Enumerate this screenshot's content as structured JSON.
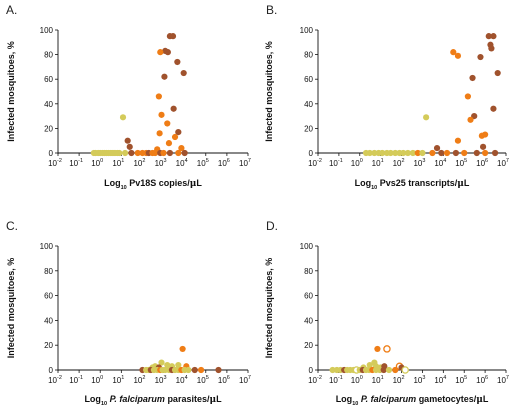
{
  "colors": {
    "brown": "#a0522d",
    "orange": "#ef7d16",
    "yellow": "#d4cb5a",
    "axis": "#111111"
  },
  "chart_data": [
    {
      "panel": "A.",
      "type": "scatter",
      "xlabel_parts": [
        "Log",
        "10",
        " Pv18S copies/",
        "μ",
        "L"
      ],
      "ylabel": "Infected mosquitoes, %",
      "xscale": "log",
      "xlim": [
        0.01,
        10000000
      ],
      "ylim": [
        0,
        100
      ],
      "yticks": [
        0,
        20,
        40,
        60,
        80,
        100
      ],
      "xticks_exp": [
        "-2",
        "-1",
        "0",
        "1",
        "2",
        "3",
        "4",
        "5",
        "6",
        "7"
      ],
      "grid": false,
      "points": [
        {
          "x": 2000,
          "y": 95,
          "c": "brown"
        },
        {
          "x": 2800,
          "y": 95,
          "c": "brown"
        },
        {
          "x": 1200,
          "y": 83,
          "c": "brown"
        },
        {
          "x": 1600,
          "y": 82,
          "c": "brown"
        },
        {
          "x": 700,
          "y": 82,
          "c": "orange"
        },
        {
          "x": 4500,
          "y": 74,
          "c": "brown"
        },
        {
          "x": 9000,
          "y": 65,
          "c": "brown"
        },
        {
          "x": 1100,
          "y": 62,
          "c": "brown"
        },
        {
          "x": 600,
          "y": 46,
          "c": "orange"
        },
        {
          "x": 3000,
          "y": 36,
          "c": "brown"
        },
        {
          "x": 800,
          "y": 31,
          "c": "orange"
        },
        {
          "x": 12,
          "y": 29,
          "c": "yellow"
        },
        {
          "x": 1500,
          "y": 24,
          "c": "orange"
        },
        {
          "x": 5000,
          "y": 17,
          "c": "brown"
        },
        {
          "x": 650,
          "y": 16,
          "c": "orange"
        },
        {
          "x": 3500,
          "y": 13,
          "c": "orange"
        },
        {
          "x": 20,
          "y": 10,
          "c": "brown"
        },
        {
          "x": 1800,
          "y": 8,
          "c": "orange"
        },
        {
          "x": 25,
          "y": 5,
          "c": "brown"
        },
        {
          "x": 500,
          "y": 3,
          "c": "orange"
        },
        {
          "x": 7000,
          "y": 4,
          "c": "orange"
        },
        {
          "x": 0.5,
          "y": 0,
          "c": "yellow"
        },
        {
          "x": 0.6,
          "y": 0,
          "c": "yellow"
        },
        {
          "x": 0.8,
          "y": 0,
          "c": "yellow"
        },
        {
          "x": 1.0,
          "y": 0,
          "c": "yellow"
        },
        {
          "x": 1.3,
          "y": 0,
          "c": "yellow"
        },
        {
          "x": 1.6,
          "y": 0,
          "c": "yellow"
        },
        {
          "x": 2.0,
          "y": 0,
          "c": "yellow"
        },
        {
          "x": 2.5,
          "y": 0,
          "c": "yellow"
        },
        {
          "x": 3.2,
          "y": 0,
          "c": "yellow"
        },
        {
          "x": 4.0,
          "y": 0,
          "c": "yellow"
        },
        {
          "x": 5.0,
          "y": 0,
          "c": "yellow"
        },
        {
          "x": 6.5,
          "y": 0,
          "c": "yellow"
        },
        {
          "x": 8.0,
          "y": 0,
          "c": "yellow"
        },
        {
          "x": 15,
          "y": 0,
          "c": "yellow"
        },
        {
          "x": 30,
          "y": 0,
          "c": "brown"
        },
        {
          "x": 60,
          "y": 0,
          "c": "orange"
        },
        {
          "x": 100,
          "y": 0,
          "c": "orange"
        },
        {
          "x": 150,
          "y": 0,
          "c": "orange"
        },
        {
          "x": 200,
          "y": 0,
          "c": "brown"
        },
        {
          "x": 300,
          "y": 0,
          "c": "orange"
        },
        {
          "x": 400,
          "y": 0,
          "c": "orange"
        },
        {
          "x": 700,
          "y": 0,
          "c": "brown"
        },
        {
          "x": 1000,
          "y": 0,
          "c": "orange"
        },
        {
          "x": 2000,
          "y": 0,
          "c": "brown"
        },
        {
          "x": 5000,
          "y": 0,
          "c": "orange"
        },
        {
          "x": 10000,
          "y": 0,
          "c": "brown"
        }
      ]
    },
    {
      "panel": "B.",
      "type": "scatter",
      "xlabel_parts": [
        "Log",
        "10",
        " Pvs25 transcripts/",
        "μ",
        "L"
      ],
      "ylabel": "Infected mosquitoes, %",
      "xscale": "log",
      "xlim": [
        0.01,
        10000000
      ],
      "ylim": [
        0,
        100
      ],
      "yticks": [
        0,
        20,
        40,
        60,
        80,
        100
      ],
      "xticks_exp": [
        "-2",
        "-1",
        "0",
        "1",
        "2",
        "3",
        "4",
        "5",
        "6",
        "7"
      ],
      "grid": false,
      "points": [
        {
          "x": 1500000,
          "y": 95,
          "c": "brown"
        },
        {
          "x": 2500000,
          "y": 95,
          "c": "brown"
        },
        {
          "x": 1800000,
          "y": 88,
          "c": "brown"
        },
        {
          "x": 2000000,
          "y": 85,
          "c": "brown"
        },
        {
          "x": 30000,
          "y": 82,
          "c": "orange"
        },
        {
          "x": 50000,
          "y": 79,
          "c": "orange"
        },
        {
          "x": 600000,
          "y": 78,
          "c": "brown"
        },
        {
          "x": 4000000,
          "y": 65,
          "c": "brown"
        },
        {
          "x": 250000,
          "y": 61,
          "c": "brown"
        },
        {
          "x": 150000,
          "y": 46,
          "c": "orange"
        },
        {
          "x": 2500000,
          "y": 36,
          "c": "brown"
        },
        {
          "x": 300000,
          "y": 30,
          "c": "brown"
        },
        {
          "x": 1500,
          "y": 29,
          "c": "yellow"
        },
        {
          "x": 200000,
          "y": 27,
          "c": "orange"
        },
        {
          "x": 1000000,
          "y": 15,
          "c": "orange"
        },
        {
          "x": 50000,
          "y": 10,
          "c": "orange"
        },
        {
          "x": 700000,
          "y": 14,
          "c": "orange"
        },
        {
          "x": 800000,
          "y": 5,
          "c": "brown"
        },
        {
          "x": 5000,
          "y": 4,
          "c": "brown"
        },
        {
          "x": 2,
          "y": 0,
          "c": "yellow"
        },
        {
          "x": 3,
          "y": 0,
          "c": "yellow"
        },
        {
          "x": 5,
          "y": 0,
          "c": "yellow"
        },
        {
          "x": 8,
          "y": 0,
          "c": "yellow"
        },
        {
          "x": 12,
          "y": 0,
          "c": "yellow"
        },
        {
          "x": 20,
          "y": 0,
          "c": "yellow"
        },
        {
          "x": 30,
          "y": 0,
          "c": "yellow"
        },
        {
          "x": 50,
          "y": 0,
          "c": "yellow"
        },
        {
          "x": 80,
          "y": 0,
          "c": "yellow"
        },
        {
          "x": 120,
          "y": 0,
          "c": "yellow"
        },
        {
          "x": 200,
          "y": 0,
          "c": "yellow"
        },
        {
          "x": 350,
          "y": 0,
          "c": "yellow"
        },
        {
          "x": 600,
          "y": 0,
          "c": "orange"
        },
        {
          "x": 1000,
          "y": 0,
          "c": "yellow"
        },
        {
          "x": 3000,
          "y": 0,
          "c": "orange"
        },
        {
          "x": 8000,
          "y": 0,
          "c": "brown"
        },
        {
          "x": 15000,
          "y": 0,
          "c": "orange"
        },
        {
          "x": 40000,
          "y": 0,
          "c": "brown"
        },
        {
          "x": 100000,
          "y": 0,
          "c": "orange"
        },
        {
          "x": 400000,
          "y": 0,
          "c": "brown"
        },
        {
          "x": 1000000,
          "y": 0,
          "c": "orange"
        },
        {
          "x": 3000000,
          "y": 0,
          "c": "brown"
        }
      ]
    },
    {
      "panel": "C.",
      "type": "scatter",
      "xlabel_parts": [
        "Log",
        "10",
        " ",
        "P. falciparum",
        " parasites/",
        "μ",
        "L"
      ],
      "ylabel": "Infected mosquitoes, %",
      "xscale": "log",
      "xlim": [
        0.01,
        10000000
      ],
      "ylim": [
        0,
        100
      ],
      "yticks": [
        0,
        20,
        40,
        60,
        80,
        100
      ],
      "xticks_exp": [
        "-2",
        "-1",
        "0",
        "1",
        "2",
        "3",
        "4",
        "5",
        "6",
        "7"
      ],
      "grid": false,
      "points": [
        {
          "x": 8000,
          "y": 17,
          "c": "orange"
        },
        {
          "x": 800,
          "y": 6,
          "c": "yellow"
        },
        {
          "x": 1500,
          "y": 4,
          "c": "yellow"
        },
        {
          "x": 5000,
          "y": 4,
          "c": "yellow"
        },
        {
          "x": 2500,
          "y": 3,
          "c": "yellow"
        },
        {
          "x": 400,
          "y": 3,
          "c": "yellow"
        },
        {
          "x": 12000,
          "y": 3,
          "c": "orange"
        },
        {
          "x": 300,
          "y": 2,
          "c": "yellow"
        },
        {
          "x": 600,
          "y": 2,
          "c": "brown"
        },
        {
          "x": 100,
          "y": 0,
          "c": "brown"
        },
        {
          "x": 150,
          "y": 0,
          "c": "yellow"
        },
        {
          "x": 200,
          "y": 0,
          "c": "yellow"
        },
        {
          "x": 250,
          "y": 0,
          "c": "brown"
        },
        {
          "x": 350,
          "y": 0,
          "c": "yellow"
        },
        {
          "x": 500,
          "y": 0,
          "c": "yellow"
        },
        {
          "x": 700,
          "y": 0,
          "c": "orange"
        },
        {
          "x": 900,
          "y": 0,
          "c": "yellow"
        },
        {
          "x": 1200,
          "y": 0,
          "c": "yellow"
        },
        {
          "x": 1800,
          "y": 0,
          "c": "yellow"
        },
        {
          "x": 2500,
          "y": 0,
          "c": "brown"
        },
        {
          "x": 3500,
          "y": 0,
          "c": "yellow"
        },
        {
          "x": 5000,
          "y": 0,
          "c": "yellow"
        },
        {
          "x": 7000,
          "y": 0,
          "c": "orange"
        },
        {
          "x": 10000,
          "y": 0,
          "c": "yellow"
        },
        {
          "x": 15000,
          "y": 0,
          "c": "yellow"
        },
        {
          "x": 30000,
          "y": 0,
          "c": "brown"
        },
        {
          "x": 60000,
          "y": 0,
          "c": "orange"
        },
        {
          "x": 400000,
          "y": 0,
          "c": "brown"
        }
      ]
    },
    {
      "panel": "D.",
      "type": "scatter",
      "xlabel_parts": [
        "Log",
        "10",
        " ",
        "P. falciparum",
        " gametocytes/",
        "μ",
        "L"
      ],
      "ylabel": "Infected mosquitoes, %",
      "xscale": "log",
      "xlim": [
        0.01,
        10000000
      ],
      "ylim": [
        0,
        100
      ],
      "yticks": [
        0,
        20,
        40,
        60,
        80,
        100
      ],
      "xticks_exp": [
        "-2",
        "-1",
        "0",
        "1",
        "2",
        "3",
        "4",
        "5",
        "6",
        "7"
      ],
      "grid": false,
      "points": [
        {
          "x": 7,
          "y": 17,
          "c": "orange"
        },
        {
          "x": 20,
          "y": 17,
          "c": "orange",
          "open": true
        },
        {
          "x": 5,
          "y": 6,
          "c": "yellow"
        },
        {
          "x": 6,
          "y": 3,
          "c": "yellow"
        },
        {
          "x": 3,
          "y": 4,
          "c": "yellow"
        },
        {
          "x": 80,
          "y": 3,
          "c": "orange",
          "open": true
        },
        {
          "x": 1.5,
          "y": 2,
          "c": "yellow"
        },
        {
          "x": 10,
          "y": 2,
          "c": "yellow"
        },
        {
          "x": 15,
          "y": 3,
          "c": "brown"
        },
        {
          "x": 100,
          "y": 2,
          "c": "brown"
        },
        {
          "x": 0.05,
          "y": 0,
          "c": "yellow"
        },
        {
          "x": 0.08,
          "y": 0,
          "c": "yellow"
        },
        {
          "x": 0.12,
          "y": 0,
          "c": "yellow"
        },
        {
          "x": 0.18,
          "y": 0,
          "c": "brown"
        },
        {
          "x": 0.25,
          "y": 0,
          "c": "yellow"
        },
        {
          "x": 0.35,
          "y": 0,
          "c": "yellow"
        },
        {
          "x": 0.5,
          "y": 0,
          "c": "yellow"
        },
        {
          "x": 0.7,
          "y": 0,
          "c": "yellow",
          "open": true
        },
        {
          "x": 1.0,
          "y": 0,
          "c": "yellow"
        },
        {
          "x": 1.4,
          "y": 0,
          "c": "brown"
        },
        {
          "x": 2.0,
          "y": 0,
          "c": "yellow"
        },
        {
          "x": 2.8,
          "y": 0,
          "c": "yellow"
        },
        {
          "x": 4.0,
          "y": 0,
          "c": "orange"
        },
        {
          "x": 6.0,
          "y": 0,
          "c": "yellow"
        },
        {
          "x": 9.0,
          "y": 0,
          "c": "yellow"
        },
        {
          "x": 14,
          "y": 0,
          "c": "brown"
        },
        {
          "x": 25,
          "y": 0,
          "c": "yellow"
        },
        {
          "x": 50,
          "y": 0,
          "c": "orange"
        },
        {
          "x": 150,
          "y": 0,
          "c": "yellow",
          "open": true
        }
      ]
    }
  ]
}
